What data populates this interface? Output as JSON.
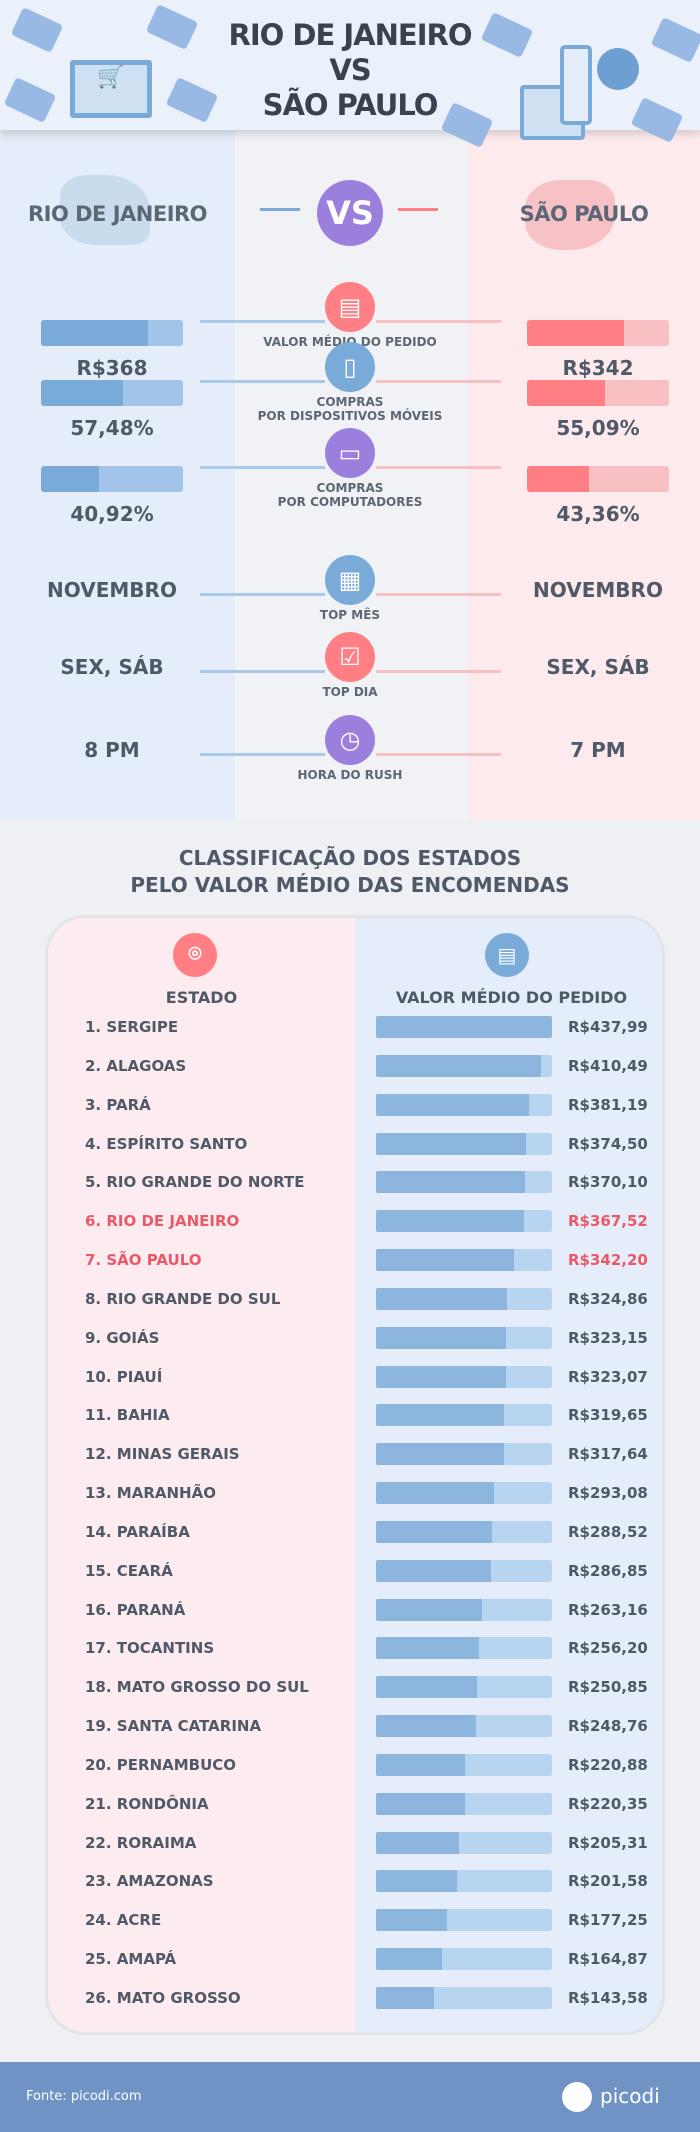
{
  "header": {
    "title_line1": "RIO DE JANEIRO",
    "title_line2": "VS",
    "title_line3": "SÃO PAULO"
  },
  "compare": {
    "left_city": "RIO DE JANEIRO",
    "right_city": "SÃO PAULO",
    "vs_label": "VS",
    "colors": {
      "left": "#7aaad8",
      "left_light": "#a2c4e8",
      "right": "#ff7f84",
      "right_light": "#f9c0c4",
      "vs": "#9b7fdc"
    },
    "rows": [
      {
        "label": "VALOR MÉDIO DO PEDIDO",
        "icon": "receipt-icon",
        "left": "R$368",
        "right": "R$342",
        "left_fill": 0.75,
        "right_fill": 0.68
      },
      {
        "label": "COMPRAS\nPOR DISPOSITIVOS MÓVEIS",
        "icon": "smartphone-icon",
        "left": "57,48%",
        "right": "55,09%",
        "left_fill": 0.5748,
        "right_fill": 0.5509
      },
      {
        "label": "COMPRAS\nPOR COMPUTADORES",
        "icon": "laptop-icon",
        "left": "40,92%",
        "right": "43,36%",
        "left_fill": 0.4092,
        "right_fill": 0.4336
      },
      {
        "label": "TOP MÊS",
        "icon": "calendar-icon",
        "left": "NOVEMBRO",
        "right": "NOVEMBRO"
      },
      {
        "label": "TOP DIA",
        "icon": "calendar-check-icon",
        "left": "SEX, SÁB",
        "right": "SEX, SÁB"
      },
      {
        "label": "HORA DO RUSH",
        "icon": "clock-icon",
        "left": "8 PM",
        "right": "7 PM"
      }
    ]
  },
  "ranking": {
    "title_line1": "CLASSIFICAÇÃO DOS ESTADOS",
    "title_line2": "PELO VALOR MÉDIO DAS ENCOMENDAS",
    "col_state": "ESTADO",
    "col_value": "VALOR MÉDIO DO PEDIDO"
  },
  "chart_data": {
    "type": "bar",
    "orientation": "horizontal",
    "xlim": [
      0,
      437.99
    ],
    "categories": [
      "1. SERGIPE",
      "2. ALAGOAS",
      "3. PARÁ",
      "4. ESPÍRITO SANTO",
      "5. RIO GRANDE DO NORTE",
      "6. RIO DE JANEIRO",
      "7. SÃO PAULO",
      "8. RIO GRANDE DO SUL",
      "9. GOIÁS",
      "10. PIAUÍ",
      "11. BAHIA",
      "12. MINAS GERAIS",
      "13. MARANHÃO",
      "14. PARAÍBA",
      "15. CEARÁ",
      "16. PARANÁ",
      "17. TOCANTINS",
      "18. MATO GROSSO DO SUL",
      "19. SANTA CATARINA",
      "20. PERNAMBUCO",
      "21. RONDÔNIA",
      "22. RORAIMA",
      "23. AMAZONAS",
      "24. ACRE",
      "25. AMAPÁ",
      "26. MATO GROSSO"
    ],
    "values": [
      437.99,
      410.49,
      381.19,
      374.5,
      370.1,
      367.52,
      342.2,
      324.86,
      323.15,
      323.07,
      319.65,
      317.64,
      293.08,
      288.52,
      286.85,
      263.16,
      256.2,
      250.85,
      248.76,
      220.88,
      220.35,
      205.31,
      201.58,
      177.25,
      164.87,
      143.58
    ],
    "labels": [
      "R$437,99",
      "R$410,49",
      "R$381,19",
      "R$374,50",
      "R$370,10",
      "R$367,52",
      "R$342,20",
      "R$324,86",
      "R$323,15",
      "R$323,07",
      "R$319,65",
      "R$317,64",
      "R$293,08",
      "R$288,52",
      "R$286,85",
      "R$263,16",
      "R$256,20",
      "R$250,85",
      "R$248,76",
      "R$220,88",
      "R$220,35",
      "R$205,31",
      "R$201,58",
      "R$177,25",
      "R$164,87",
      "R$143,58"
    ],
    "highlighted": [
      "6. RIO DE JANEIRO",
      "7. SÃO PAULO"
    ],
    "colors": {
      "bar": "#8cb6dd",
      "track": "#b7d4f1",
      "highlight_text": "#e85a68"
    }
  },
  "footer": {
    "source": "Fonte: picodi.com",
    "brand": "picodi"
  }
}
